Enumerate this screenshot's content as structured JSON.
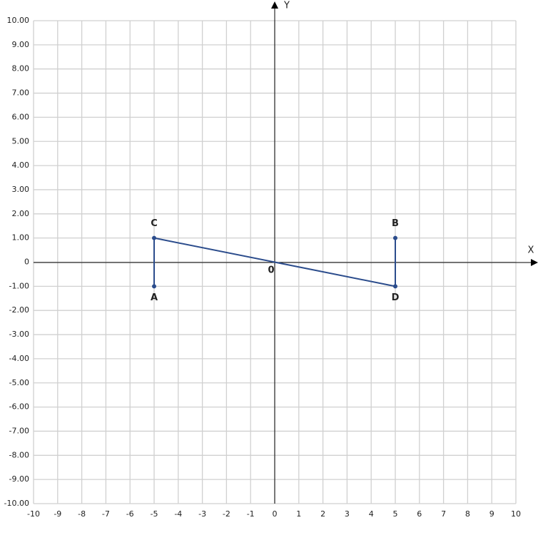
{
  "chart_data": {
    "type": "scatter",
    "x_axis_label": "X",
    "y_axis_label": "Y",
    "origin_label": "0",
    "xlim": [
      -10,
      10
    ],
    "ylim": [
      -10,
      10
    ],
    "xticks": [
      -10,
      -9,
      -8,
      -7,
      -6,
      -5,
      -4,
      -3,
      -2,
      -1,
      0,
      1,
      2,
      3,
      4,
      5,
      6,
      7,
      8,
      9,
      10
    ],
    "yticks": [
      {
        "value": 10,
        "label": "10.00"
      },
      {
        "value": 9,
        "label": "9.00"
      },
      {
        "value": 8,
        "label": "8.00"
      },
      {
        "value": 7,
        "label": "7.00"
      },
      {
        "value": 6,
        "label": "6.00"
      },
      {
        "value": 5,
        "label": "5.00"
      },
      {
        "value": 4,
        "label": "4.00"
      },
      {
        "value": 3,
        "label": "3.00"
      },
      {
        "value": 2,
        "label": "2.00"
      },
      {
        "value": 1,
        "label": "1.00"
      },
      0,
      {
        "value": -1,
        "label": "-1.00"
      },
      {
        "value": -2,
        "label": "-2.00"
      },
      {
        "value": -3,
        "label": "-3.00"
      },
      {
        "value": -4,
        "label": "-4.00"
      },
      {
        "value": -5,
        "label": "-5.00"
      },
      {
        "value": -6,
        "label": "-6.00"
      },
      {
        "value": -7,
        "label": "-7.00"
      },
      {
        "value": -8,
        "label": "-8.00"
      },
      {
        "value": -9,
        "label": "-9.00"
      },
      {
        "value": -10,
        "label": "-10.00"
      }
    ],
    "grid": true,
    "color": "#2b4c8c",
    "connected": true,
    "point_labels": [
      "A",
      "C",
      "D",
      "B"
    ],
    "x": [
      -5,
      -5,
      5,
      5
    ],
    "values": [
      -1,
      1,
      -1,
      1
    ]
  }
}
